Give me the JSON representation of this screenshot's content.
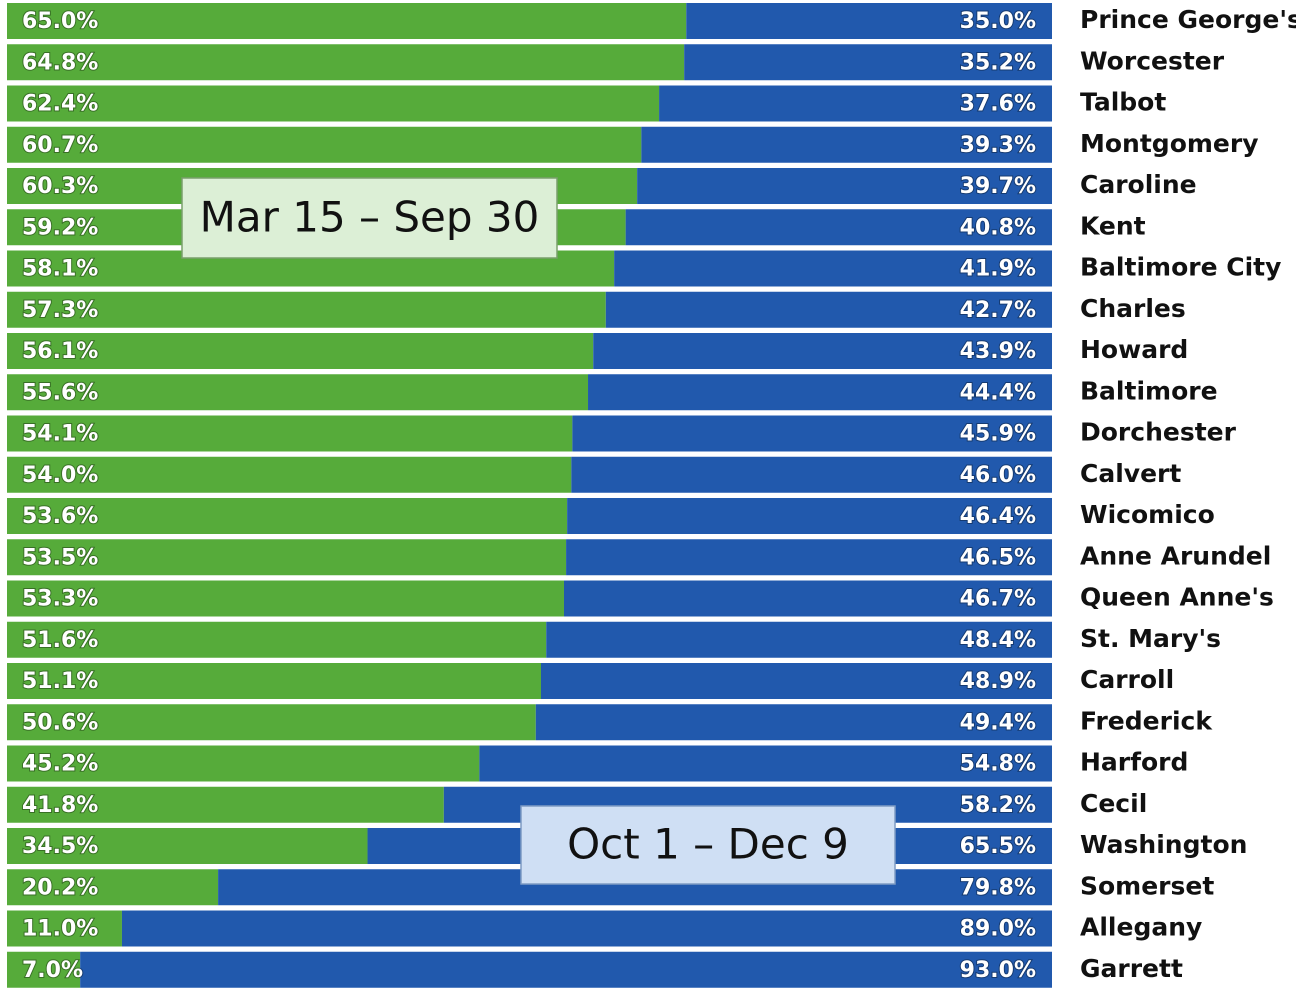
{
  "chart_data": {
    "type": "bar",
    "orientation": "horizontal",
    "stacked": true,
    "categories": [
      "Prince George's",
      "Worcester",
      "Talbot",
      "Montgomery",
      "Caroline",
      "Kent",
      "Baltimore City",
      "Charles",
      "Howard",
      "Baltimore",
      "Dorchester",
      "Calvert",
      "Wicomico",
      "Anne Arundel",
      "Queen Anne's",
      "St. Mary's",
      "Carroll",
      "Frederick",
      "Harford",
      "Cecil",
      "Washington",
      "Somerset",
      "Allegany",
      "Garrett"
    ],
    "series": [
      {
        "name": "Mar 15 – Sep 30",
        "color": "#56ab3a",
        "values": [
          65.0,
          64.8,
          62.4,
          60.7,
          60.3,
          59.2,
          58.1,
          57.3,
          56.1,
          55.6,
          54.1,
          54.0,
          53.6,
          53.5,
          53.3,
          51.6,
          51.1,
          50.6,
          45.2,
          41.8,
          34.5,
          20.2,
          11.0,
          7.0
        ],
        "value_labels": [
          "65.0%",
          "64.8%",
          "62.4%",
          "60.7%",
          "60.3%",
          "59.2%",
          "58.1%",
          "57.3%",
          "56.1%",
          "55.6%",
          "54.1%",
          "54.0%",
          "53.6%",
          "53.5%",
          "53.3%",
          "51.6%",
          "51.1%",
          "50.6%",
          "45.2%",
          "41.8%",
          "34.5%",
          "20.2%",
          "11.0%",
          "7.0%"
        ]
      },
      {
        "name": "Oct 1 – Dec 9",
        "color": "#2159ad",
        "values": [
          35.0,
          35.2,
          37.6,
          39.3,
          39.7,
          40.8,
          41.9,
          42.7,
          43.9,
          44.4,
          45.9,
          46.0,
          46.4,
          46.5,
          46.7,
          48.4,
          48.9,
          49.4,
          54.8,
          58.2,
          65.5,
          79.8,
          89.0,
          93.0
        ],
        "value_labels": [
          "35.0%",
          "35.2%",
          "37.6%",
          "39.3%",
          "39.7%",
          "40.8%",
          "41.9%",
          "42.7%",
          "43.9%",
          "44.4%",
          "45.9%",
          "46.0%",
          "46.4%",
          "46.5%",
          "46.7%",
          "48.4%",
          "48.9%",
          "49.4%",
          "54.8%",
          "58.2%",
          "65.5%",
          "79.8%",
          "89.0%",
          "93.0%"
        ]
      }
    ]
  }
}
